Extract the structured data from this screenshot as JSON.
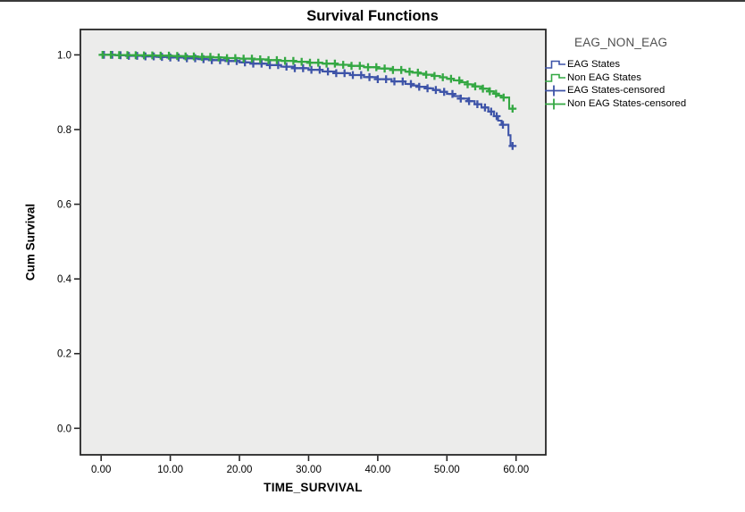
{
  "chart": {
    "title": "Survival Functions",
    "xlabel": "TIME_SURVIVAL",
    "ylabel": "Cum Survival"
  },
  "legend": {
    "title": "EAG_NON_EAG",
    "items": [
      {
        "label": "EAG States",
        "type": "step-line",
        "color": "#3E54A8"
      },
      {
        "label": "Non EAG States",
        "type": "step-line",
        "color": "#34A843"
      },
      {
        "label": "EAG States-censored",
        "type": "censored",
        "color": "#3E54A8"
      },
      {
        "label": "Non EAG States-censored",
        "type": "censored",
        "color": "#34A843"
      }
    ]
  },
  "chart_data": {
    "type": "line",
    "subtype": "kaplan-meier-step-survival",
    "title": "Survival Functions",
    "xlabel": "TIME_SURVIVAL",
    "ylabel": "Cum Survival",
    "xlim": [
      -3,
      64.3
    ],
    "ylim": [
      -0.071,
      1.068
    ],
    "xticks": {
      "values": [
        0,
        10,
        20,
        30,
        40,
        50,
        60
      ],
      "labels": [
        "0.00",
        "10.00",
        "20.00",
        "30.00",
        "40.00",
        "50.00",
        "60.00"
      ]
    },
    "yticks": {
      "values": [
        0.0,
        0.2,
        0.4,
        0.6,
        0.8,
        1.0
      ],
      "labels": [
        "0.0",
        "0.2",
        "0.4",
        "0.6",
        "0.8",
        "1.0"
      ]
    },
    "grid": false,
    "legend_position": "right",
    "plot_background": "#ECECEB",
    "axis_color": "#262626",
    "series": [
      {
        "name": "EAG States",
        "color": "#3E54A8",
        "end_x": 59.8,
        "points": [
          [
            0,
            1.0
          ],
          [
            2,
            0.999
          ],
          [
            4,
            0.9975
          ],
          [
            6,
            0.996
          ],
          [
            8,
            0.9945
          ],
          [
            10,
            0.993
          ],
          [
            12,
            0.991
          ],
          [
            14,
            0.9885
          ],
          [
            16,
            0.986
          ],
          [
            18,
            0.9835
          ],
          [
            20,
            0.98
          ],
          [
            22,
            0.9765
          ],
          [
            24,
            0.9725
          ],
          [
            26,
            0.9685
          ],
          [
            28,
            0.9645
          ],
          [
            30,
            0.96
          ],
          [
            32,
            0.9555
          ],
          [
            34,
            0.951
          ],
          [
            36,
            0.946
          ],
          [
            38,
            0.9405
          ],
          [
            40,
            0.935
          ],
          [
            42,
            0.929
          ],
          [
            44,
            0.922
          ],
          [
            45,
            0.918
          ],
          [
            46,
            0.9145
          ],
          [
            47,
            0.9105
          ],
          [
            48,
            0.906
          ],
          [
            49,
            0.901
          ],
          [
            50,
            0.8955
          ],
          [
            51,
            0.8895
          ],
          [
            52,
            0.883
          ],
          [
            53,
            0.876
          ],
          [
            54,
            0.868
          ],
          [
            55,
            0.859
          ],
          [
            56,
            0.848
          ],
          [
            56.8,
            0.836
          ],
          [
            57.4,
            0.824
          ],
          [
            57.9,
            0.813
          ],
          [
            58.9,
            0.785
          ],
          [
            59.2,
            0.756
          ]
        ],
        "censored_x": [
          0.4,
          1.6,
          2.8,
          4.0,
          5.2,
          6.4,
          7.6,
          8.8,
          10.0,
          11.2,
          12.4,
          13.6,
          14.8,
          16.0,
          17.2,
          18.4,
          19.6,
          20.8,
          22.0,
          23.2,
          24.4,
          25.6,
          26.8,
          28.0,
          29.2,
          30.4,
          31.6,
          32.8,
          34.0,
          35.2,
          36.4,
          37.6,
          38.8,
          40.0,
          41.2,
          42.4,
          43.6,
          44.8,
          46.0,
          47.2,
          48.4,
          49.6,
          50.8,
          52.0,
          53.2,
          54.4,
          55.5,
          56.4,
          57.2,
          58.1,
          59.5
        ]
      },
      {
        "name": "Non EAG States",
        "color": "#34A843",
        "end_x": 59.9,
        "points": [
          [
            0,
            1.0
          ],
          [
            2,
            0.9995
          ],
          [
            4,
            0.999
          ],
          [
            6,
            0.9985
          ],
          [
            8,
            0.998
          ],
          [
            10,
            0.997
          ],
          [
            12,
            0.996
          ],
          [
            14,
            0.9945
          ],
          [
            16,
            0.993
          ],
          [
            18,
            0.9915
          ],
          [
            20,
            0.99
          ],
          [
            22,
            0.988
          ],
          [
            24,
            0.986
          ],
          [
            26,
            0.984
          ],
          [
            28,
            0.9815
          ],
          [
            30,
            0.979
          ],
          [
            32,
            0.9765
          ],
          [
            34,
            0.9735
          ],
          [
            36,
            0.9705
          ],
          [
            38,
            0.967
          ],
          [
            40,
            0.9635
          ],
          [
            42,
            0.9595
          ],
          [
            44,
            0.955
          ],
          [
            45,
            0.9525
          ],
          [
            46,
            0.95
          ],
          [
            47,
            0.947
          ],
          [
            48,
            0.9435
          ],
          [
            49,
            0.94
          ],
          [
            50,
            0.936
          ],
          [
            51,
            0.9315
          ],
          [
            52,
            0.9265
          ],
          [
            53,
            0.921
          ],
          [
            54,
            0.9155
          ],
          [
            55,
            0.9095
          ],
          [
            56,
            0.9025
          ],
          [
            56.8,
            0.896
          ],
          [
            57.4,
            0.891
          ],
          [
            57.9,
            0.886
          ],
          [
            59.0,
            0.856
          ]
        ],
        "censored_x": [
          0.2,
          1.4,
          2.6,
          3.8,
          5.0,
          6.2,
          7.4,
          8.6,
          9.8,
          11.0,
          12.2,
          13.4,
          14.6,
          15.8,
          17.0,
          18.2,
          19.4,
          20.6,
          21.8,
          23.0,
          24.2,
          25.4,
          26.6,
          27.8,
          29.0,
          30.2,
          31.4,
          32.6,
          33.8,
          35.0,
          36.2,
          37.4,
          38.6,
          39.8,
          41.0,
          42.2,
          43.4,
          44.6,
          45.8,
          47.0,
          48.2,
          49.4,
          50.6,
          51.8,
          53.0,
          54.1,
          55.2,
          56.2,
          57.1,
          58.2,
          59.5
        ]
      }
    ]
  }
}
